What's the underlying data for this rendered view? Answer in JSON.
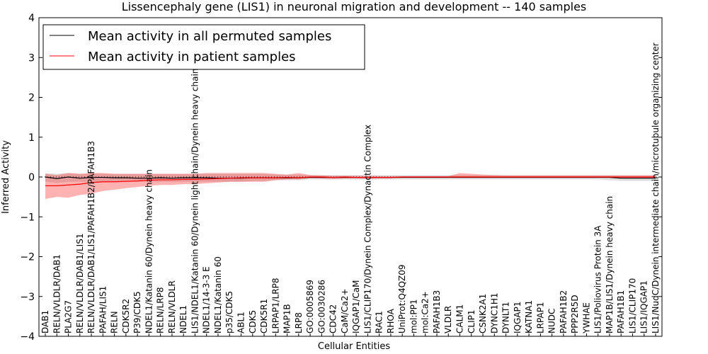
{
  "chart_data": {
    "type": "line",
    "title": "Lissencephaly gene (LIS1) in neuronal migration and development -- 140 samples",
    "xlabel": "Cellular Entities",
    "ylabel": "Inferred Activity",
    "ylim": [
      -4,
      4
    ],
    "yticks": [
      -4,
      -3,
      -2,
      -1,
      0,
      1,
      2,
      3,
      4
    ],
    "ytick_labels": [
      "−4",
      "−3",
      "−2",
      "−1",
      "0",
      "1",
      "2",
      "3",
      "4"
    ],
    "legend": {
      "placement": "top-left",
      "entries": [
        {
          "label": "Mean activity in all permuted samples",
          "color": "#000000"
        },
        {
          "label": "Mean activity in patient samples",
          "color": "#ff0000"
        }
      ]
    },
    "categories": [
      "DAB1",
      "RELN/VLDLR/DAB1",
      "PLA2G7",
      "RELN/VLDLR/DAB1/LIS1",
      "RELN/VLDLR/DAB1/LIS1/PAFAH1B2/PAFAH1B3",
      "PAFAH/LIS1",
      "RELN",
      "CDK5R2",
      "P39/CDK5",
      "NDEL1/Katanin 60/Dynein heavy chain",
      "RELN/LRP8",
      "RELN/VLDLR",
      "NDEL1",
      "LIS1/NDEL1/Katanin 60/Dynein light chain/Dynein heavy chain",
      "NDEL1/14-3-3 E",
      "NDEL1/Katanin 60",
      "p35/CDK5",
      "ABL1",
      "CDK5",
      "CDK5R1",
      "LRPAP1/LRP8",
      "MAP1B",
      "LRP8",
      "GO:0005869",
      "GO:0030286",
      "CDC42",
      "CaM/Ca2+",
      "IQGAP1/CaM",
      "LIS1/CLIP170/Dynein Complex/Dynactin Complex",
      "RAC1",
      "RHOA",
      "UniProt:Q4QZ09",
      "mol:PP1",
      "mol:Ca2+",
      "PAFAH1B3",
      "VLDLR",
      "CALM1",
      "CLIP1",
      "CSNK2A1",
      "DYNC1H1",
      "DYNLT1",
      "IQGAP1",
      "KATNA1",
      "LRPAP1",
      "NUDC",
      "PAFAH1B2",
      "PPP2R5D",
      "YWHAE",
      "LIS1/Poliovirus Protein 3A",
      "MAP1B/LIS1/Dynein heavy chain",
      "PAFAH1B1",
      "LIS1/CLIP170",
      "LIS1/IQGAP1",
      "LIS1/NudC/Dynein intermediate chain/microtubule organizing center"
    ],
    "series": [
      {
        "name": "Mean activity in all permuted samples",
        "color": "#000000",
        "values": [
          0.0,
          -0.04,
          0.0,
          -0.03,
          -0.01,
          -0.01,
          -0.02,
          -0.02,
          -0.03,
          -0.03,
          -0.02,
          -0.03,
          -0.02,
          -0.02,
          -0.02,
          -0.03,
          -0.03,
          -0.03,
          -0.02,
          -0.02,
          -0.02,
          -0.02,
          -0.02,
          -0.01,
          -0.01,
          -0.01,
          -0.01,
          -0.01,
          -0.01,
          -0.01,
          -0.01,
          -0.01,
          -0.01,
          -0.01,
          -0.01,
          -0.01,
          -0.01,
          -0.01,
          -0.01,
          -0.01,
          -0.01,
          -0.01,
          -0.01,
          -0.01,
          -0.01,
          -0.01,
          -0.01,
          -0.01,
          -0.01,
          -0.01,
          -0.03,
          -0.03,
          -0.03,
          -0.03
        ],
        "band_low": [
          -0.12,
          -0.15,
          -0.12,
          -0.12,
          -0.12,
          -0.12,
          -0.12,
          -0.12,
          -0.12,
          -0.12,
          -0.12,
          -0.12,
          -0.12,
          -0.12,
          -0.12,
          -0.12,
          -0.12,
          -0.12,
          -0.1,
          -0.1,
          -0.08,
          -0.08,
          -0.08,
          -0.06,
          -0.06,
          -0.06,
          -0.06,
          -0.06,
          -0.06,
          -0.06,
          -0.06,
          -0.06,
          -0.06,
          -0.06,
          -0.06,
          -0.06,
          -0.06,
          -0.06,
          -0.06,
          -0.06,
          -0.06,
          -0.06,
          -0.06,
          -0.06,
          -0.06,
          -0.06,
          -0.06,
          -0.06,
          -0.06,
          -0.08,
          -0.1,
          -0.1,
          -0.1,
          -0.1
        ],
        "band_high": [
          0.1,
          0.08,
          0.1,
          0.08,
          0.08,
          0.08,
          0.08,
          0.08,
          0.08,
          0.08,
          0.08,
          0.08,
          0.08,
          0.08,
          0.08,
          0.08,
          0.08,
          0.08,
          0.08,
          0.08,
          0.06,
          0.06,
          0.06,
          0.05,
          0.05,
          0.05,
          0.05,
          0.05,
          0.05,
          0.05,
          0.05,
          0.05,
          0.05,
          0.05,
          0.05,
          0.05,
          0.05,
          0.05,
          0.05,
          0.05,
          0.05,
          0.05,
          0.05,
          0.05,
          0.05,
          0.05,
          0.05,
          0.05,
          0.05,
          0.05,
          0.05,
          0.05,
          0.05,
          0.05
        ]
      },
      {
        "name": "Mean activity in patient samples",
        "color": "#ff0000",
        "values": [
          -0.22,
          -0.22,
          -0.2,
          -0.18,
          -0.14,
          -0.12,
          -0.12,
          -0.11,
          -0.1,
          -0.08,
          -0.07,
          -0.07,
          -0.06,
          -0.06,
          -0.05,
          -0.04,
          -0.03,
          -0.02,
          -0.02,
          -0.02,
          -0.02,
          -0.01,
          -0.02,
          0.0,
          0.0,
          -0.01,
          0.0,
          -0.01,
          -0.01,
          -0.01,
          -0.01,
          0.0,
          0.0,
          0.0,
          0.0,
          0.0,
          0.0,
          0.0,
          0.0,
          0.0,
          0.0,
          0.0,
          0.0,
          0.0,
          0.0,
          0.0,
          0.0,
          0.0,
          0.0,
          0.0,
          0.0,
          0.0,
          0.0,
          0.0
        ],
        "band_low": [
          -0.55,
          -0.5,
          -0.52,
          -0.45,
          -0.42,
          -0.35,
          -0.32,
          -0.28,
          -0.25,
          -0.22,
          -0.2,
          -0.2,
          -0.18,
          -0.18,
          -0.16,
          -0.14,
          -0.12,
          -0.12,
          -0.12,
          -0.12,
          -0.08,
          -0.06,
          -0.06,
          -0.03,
          -0.04,
          -0.05,
          -0.04,
          -0.04,
          -0.05,
          -0.04,
          -0.04,
          -0.02,
          -0.02,
          -0.02,
          -0.02,
          -0.02,
          -0.02,
          -0.02,
          -0.02,
          -0.02,
          -0.02,
          -0.02,
          -0.02,
          -0.02,
          -0.02,
          -0.02,
          -0.02,
          -0.02,
          -0.02,
          -0.02,
          -0.02,
          -0.02,
          -0.02,
          -0.02
        ],
        "band_high": [
          0.08,
          0.05,
          0.1,
          0.08,
          0.1,
          0.1,
          0.08,
          0.08,
          0.08,
          0.08,
          0.08,
          0.08,
          0.08,
          0.08,
          0.1,
          0.1,
          0.1,
          0.1,
          0.1,
          0.1,
          0.08,
          0.06,
          0.1,
          0.05,
          0.04,
          0.03,
          0.03,
          0.03,
          0.03,
          0.02,
          0.02,
          0.02,
          0.02,
          0.02,
          0.02,
          0.02,
          0.1,
          0.08,
          0.06,
          0.05,
          0.04,
          0.04,
          0.04,
          0.04,
          0.04,
          0.04,
          0.04,
          0.04,
          0.04,
          0.04,
          0.04,
          0.04,
          0.04,
          0.04
        ]
      }
    ],
    "zero_reference_line": {
      "y": 0,
      "style": "dotted"
    }
  }
}
